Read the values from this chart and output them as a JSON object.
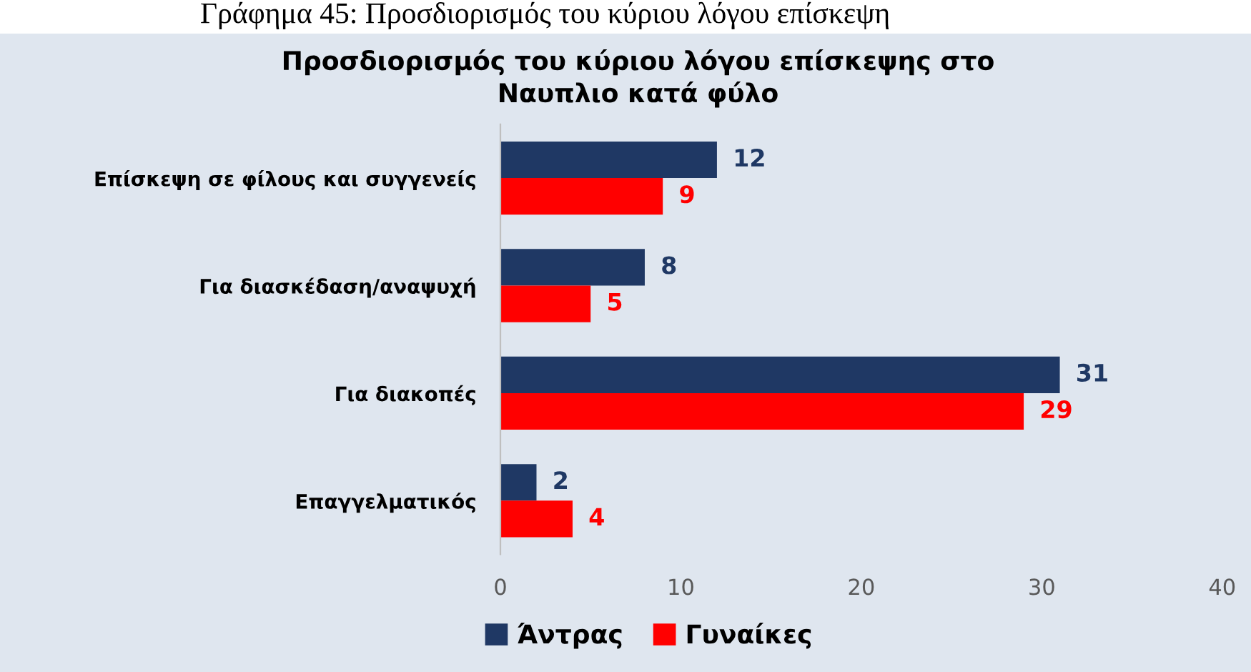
{
  "chart_data": {
    "type": "bar",
    "orientation": "horizontal",
    "title": "Προσδιορισμός του κύριου λόγου επίσκεψης στο\nΝαυπλιο κατά φύλο",
    "annotations": [
      "Γράφημα 45: Προσδιορισμός του κύριου λόγου επίσκεψη"
    ],
    "categories": [
      "Επίσκεψη σε φίλους και συγγενείς",
      "Για διασκέδαση/αναψυχή",
      "Για διακοπές",
      "Επαγγελματικός"
    ],
    "series": [
      {
        "name": "Άντρας",
        "color": "#1f3864",
        "values": [
          12,
          8,
          31,
          2
        ]
      },
      {
        "name": "Γυναίκες",
        "color": "#ff0000",
        "values": [
          9,
          5,
          29,
          4
        ]
      }
    ],
    "xlim": [
      0,
      40
    ],
    "xticks": [
      0,
      10,
      20,
      30,
      40
    ],
    "data_labels": true,
    "grid": false,
    "legend": "bottom left"
  }
}
